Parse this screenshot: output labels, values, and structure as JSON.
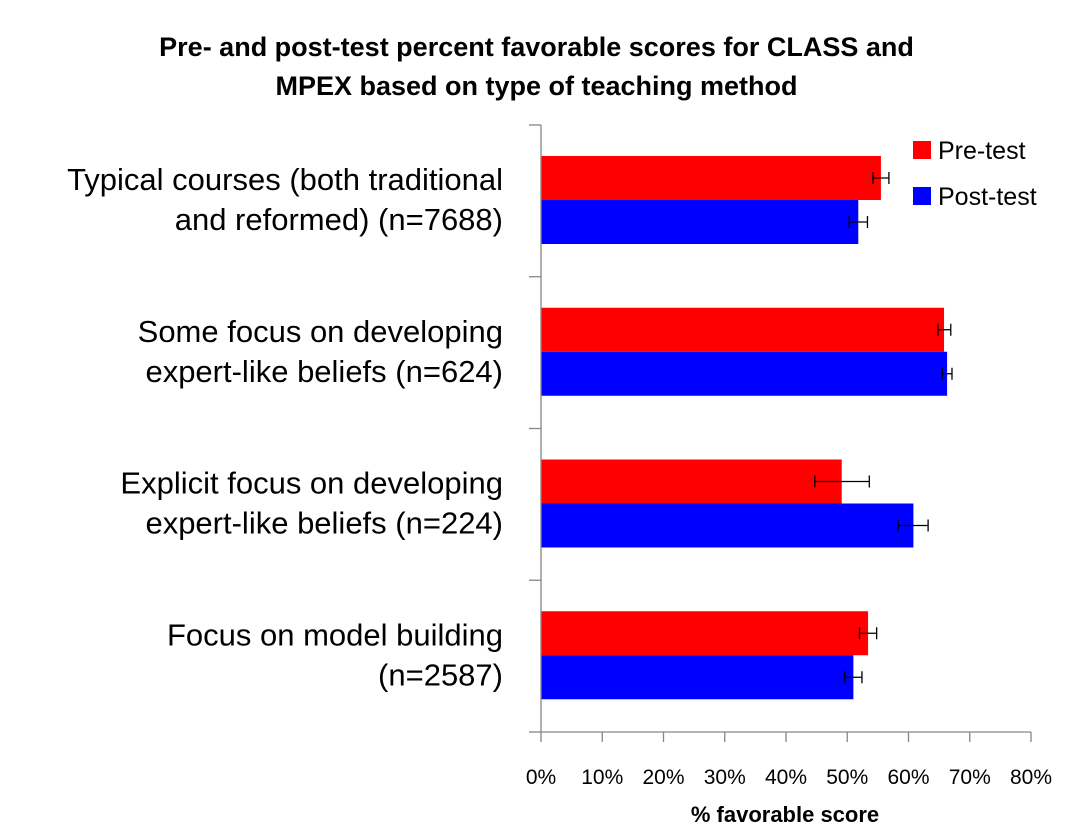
{
  "chart_data": {
    "type": "bar",
    "orientation": "horizontal",
    "title_lines": [
      "Pre- and post-test percent favorable scores for CLASS and",
      "MPEX  based on type of teaching method"
    ],
    "categories": [
      [
        "Typical courses (both traditional",
        "and reformed) (n=7688)"
      ],
      [
        "Some focus on developing",
        "expert-like beliefs (n=624)"
      ],
      [
        "Explicit focus on developing",
        "expert-like beliefs (n=224)"
      ],
      [
        "Focus on model building",
        "(n=2587)"
      ]
    ],
    "series": [
      {
        "name": "Pre-test",
        "color": "#ff0000",
        "values": [
          55.5,
          65.8,
          49.1,
          53.4
        ],
        "error_low": [
          54.2,
          64.8,
          44.7,
          52.0
        ],
        "error_high": [
          56.8,
          66.9,
          53.6,
          54.8
        ]
      },
      {
        "name": "Post-test",
        "color": "#0000ff",
        "values": [
          51.8,
          66.3,
          60.8,
          51.0
        ],
        "error_low": [
          50.3,
          65.5,
          58.3,
          49.6
        ],
        "error_high": [
          53.3,
          67.1,
          63.2,
          52.4
        ]
      }
    ],
    "xlim": [
      0,
      80
    ],
    "xticks": [
      "0%",
      "10%",
      "20%",
      "30%",
      "40%",
      "50%",
      "60%",
      "70%",
      "80%"
    ],
    "xlabel": "% favorable score",
    "ylabel": "",
    "legend_position": "top-right",
    "grid": false
  }
}
